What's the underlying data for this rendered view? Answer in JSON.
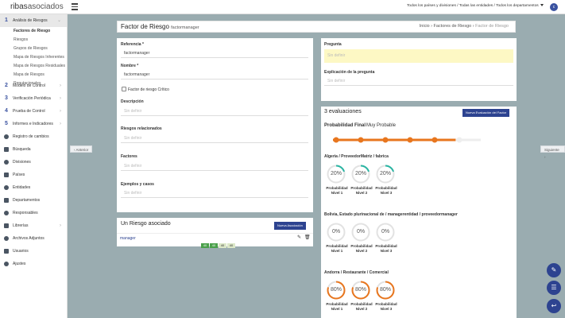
{
  "app": {
    "logo_a": "ribas",
    "logo_b": "asociados",
    "filter": "Todos los países y divisiones / Todas las entidades / Todos los departamentos",
    "avatar": "c"
  },
  "sidebar": {
    "section1": {
      "num": "1",
      "label": "Análisis de Riesgos",
      "subs": [
        "Factores de Riesgo",
        "Riesgos",
        "Grupos de Riesgos",
        "Mapa de Riesgos Inherentes",
        "Mapa de Riesgos Residuales",
        "Mapa de Riesgos Reputacionales"
      ]
    },
    "numbered": [
      {
        "num": "2",
        "label": "Modelo de Control"
      },
      {
        "num": "3",
        "label": "Verificación Periódica"
      },
      {
        "num": "4",
        "label": "Prueba de Control"
      },
      {
        "num": "5",
        "label": "Informes e Indicadores"
      }
    ],
    "others": [
      "Registro de cambios",
      "Búsqueda",
      "Divisiones",
      "Países",
      "Entidades",
      "Departamentos",
      "Responsables",
      "Librerías",
      "Archivos Adjuntos",
      "Usuarios",
      "Ajustes"
    ]
  },
  "header": {
    "title": "Factor de Riesgo",
    "subtitle": "factormanager",
    "crumb1": "Inicio",
    "crumb2": "Factores de Riesgo",
    "crumb3": "Factor de Riesgo"
  },
  "nav": {
    "prev": "Anterior",
    "next": "Siguiente"
  },
  "form": {
    "ref_label": "Referencia *",
    "ref_value": "factormanager",
    "name_label": "Nombre *",
    "name_value": "factormanager",
    "critical_label": "Factor de riesgo Crítico",
    "desc_label": "Descripción",
    "desc_ph": "Sin definir",
    "related_label": "Riesgos relacionados",
    "related_ph": "Sin definir",
    "factors_label": "Factores",
    "factors_ph": "Sin definir",
    "examples_label": "Ejemplos y casos",
    "examples_ph": "Sin definir"
  },
  "assoc": {
    "title": "Un Riesgo asociado",
    "button": "Nueva Asociación",
    "row_label": "manager",
    "tags": [
      "40",
      "40",
      "40",
      "40"
    ]
  },
  "question": {
    "label": "Pregunta",
    "ph": "Sin definir",
    "expl_label": "Explicación de la pregunta",
    "expl_ph": "Sin definir"
  },
  "evals": {
    "title": "3 evaluaciones",
    "button": "Nueva Evaluación del Factor",
    "final_label": "Probabilidad Final",
    "final_value": "Muy Probable",
    "slider_level": 0.83,
    "groups": [
      {
        "name": "Algeria / ProveedorMatriz / fabrica",
        "values": [
          "20%",
          "20%",
          "20%"
        ],
        "pct": [
          20,
          20,
          20
        ],
        "color": "#2bb5a3"
      },
      {
        "name": "Bolivia, Estado plurinacional de / managerentidad / proveedormanager",
        "values": [
          "0%",
          "0%",
          "0%"
        ],
        "pct": [
          0,
          0,
          0
        ],
        "color": "#2bb5a3"
      },
      {
        "name": "Andorra / Restaurante / Comercial",
        "values": [
          "80%",
          "80%",
          "80%"
        ],
        "pct": [
          80,
          80,
          80
        ],
        "color": "#e8761e"
      }
    ],
    "gauge_labels": [
      [
        "Probabilidad",
        "Nivel 1"
      ],
      [
        "Probabilidad",
        "Nivel 2"
      ],
      [
        "Probabilidad",
        "Nivel 3"
      ]
    ]
  },
  "colors": {
    "accent": "#2d4390",
    "orange": "#e8761e",
    "teal": "#2bb5a3"
  }
}
